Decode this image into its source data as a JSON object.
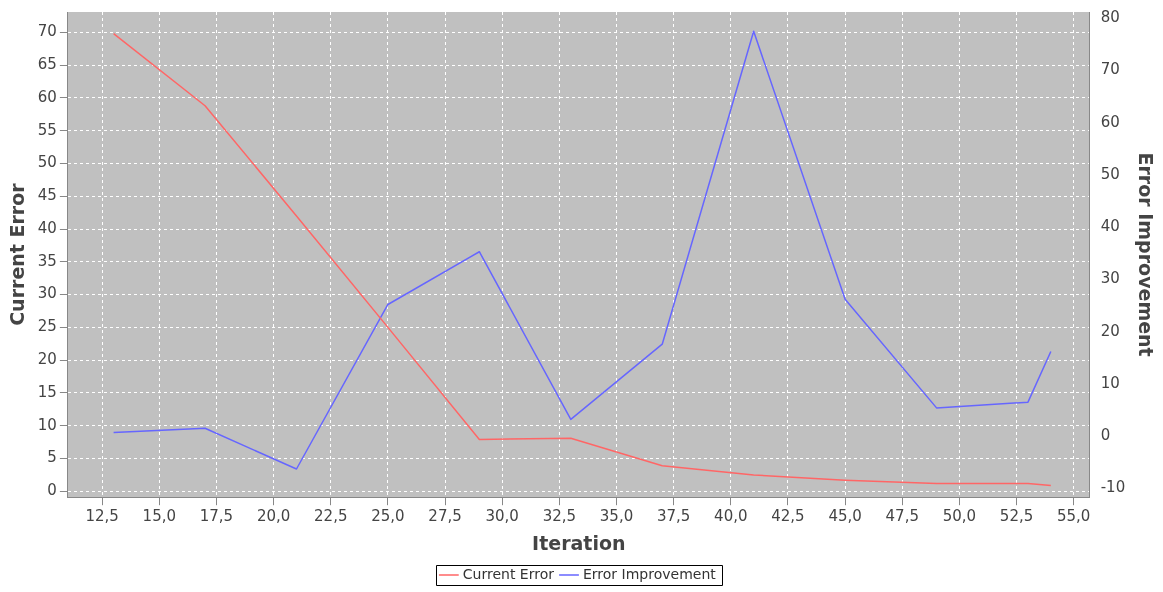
{
  "chart_data": {
    "type": "line",
    "xlabel": "Iteration",
    "ylabel": "Current Error",
    "y2label": "Error Improvement",
    "x": [
      13,
      17,
      21,
      25,
      29,
      33,
      37,
      41,
      45,
      49,
      53,
      54
    ],
    "series": [
      {
        "name": "Current Error",
        "color": "#ff6666",
        "values": [
          69.8,
          58.8,
          42,
          25,
          7.9,
          8.1,
          3.9,
          2.5,
          1.7,
          1.2,
          1.2,
          0.9
        ]
      },
      {
        "name": "Error Improvement",
        "color": "#6666ff",
        "axis": "y2",
        "values": [
          0.7,
          1.5,
          -6.3,
          25.2,
          35.3,
          3.2,
          17.6,
          77.5,
          26.2,
          5.4,
          6.5,
          16.2
        ]
      }
    ],
    "xlim": [
      11,
      55.7
    ],
    "xticks": [
      {
        "value": 12.5,
        "label": "12,5"
      },
      {
        "value": 15,
        "label": "15,0"
      },
      {
        "value": 17.5,
        "label": "17,5"
      },
      {
        "value": 20,
        "label": "20,0"
      },
      {
        "value": 22.5,
        "label": "22,5"
      },
      {
        "value": 25,
        "label": "25,0"
      },
      {
        "value": 27.5,
        "label": "27,5"
      },
      {
        "value": 30,
        "label": "30,0"
      },
      {
        "value": 32.5,
        "label": "32,5"
      },
      {
        "value": 35,
        "label": "35,0"
      },
      {
        "value": 37.5,
        "label": "37,5"
      },
      {
        "value": 40,
        "label": "40,0"
      },
      {
        "value": 42.5,
        "label": "42,5"
      },
      {
        "value": 45,
        "label": "45,0"
      },
      {
        "value": 47.5,
        "label": "47,5"
      },
      {
        "value": 50,
        "label": "50,0"
      },
      {
        "value": 52.5,
        "label": "52,5"
      },
      {
        "value": 55,
        "label": "55,0"
      }
    ],
    "ylim": [
      -0.9,
      73.1
    ],
    "yticks": [
      0,
      5,
      10,
      15,
      20,
      25,
      30,
      35,
      40,
      45,
      50,
      55,
      60,
      65,
      70
    ],
    "y2lim": [
      -11.7,
      81.2
    ],
    "y2ticks": [
      -10,
      0,
      10,
      20,
      30,
      40,
      50,
      60,
      70,
      80
    ],
    "grid": true,
    "legend": "bottom",
    "marker": "none",
    "line_style": "solid"
  }
}
